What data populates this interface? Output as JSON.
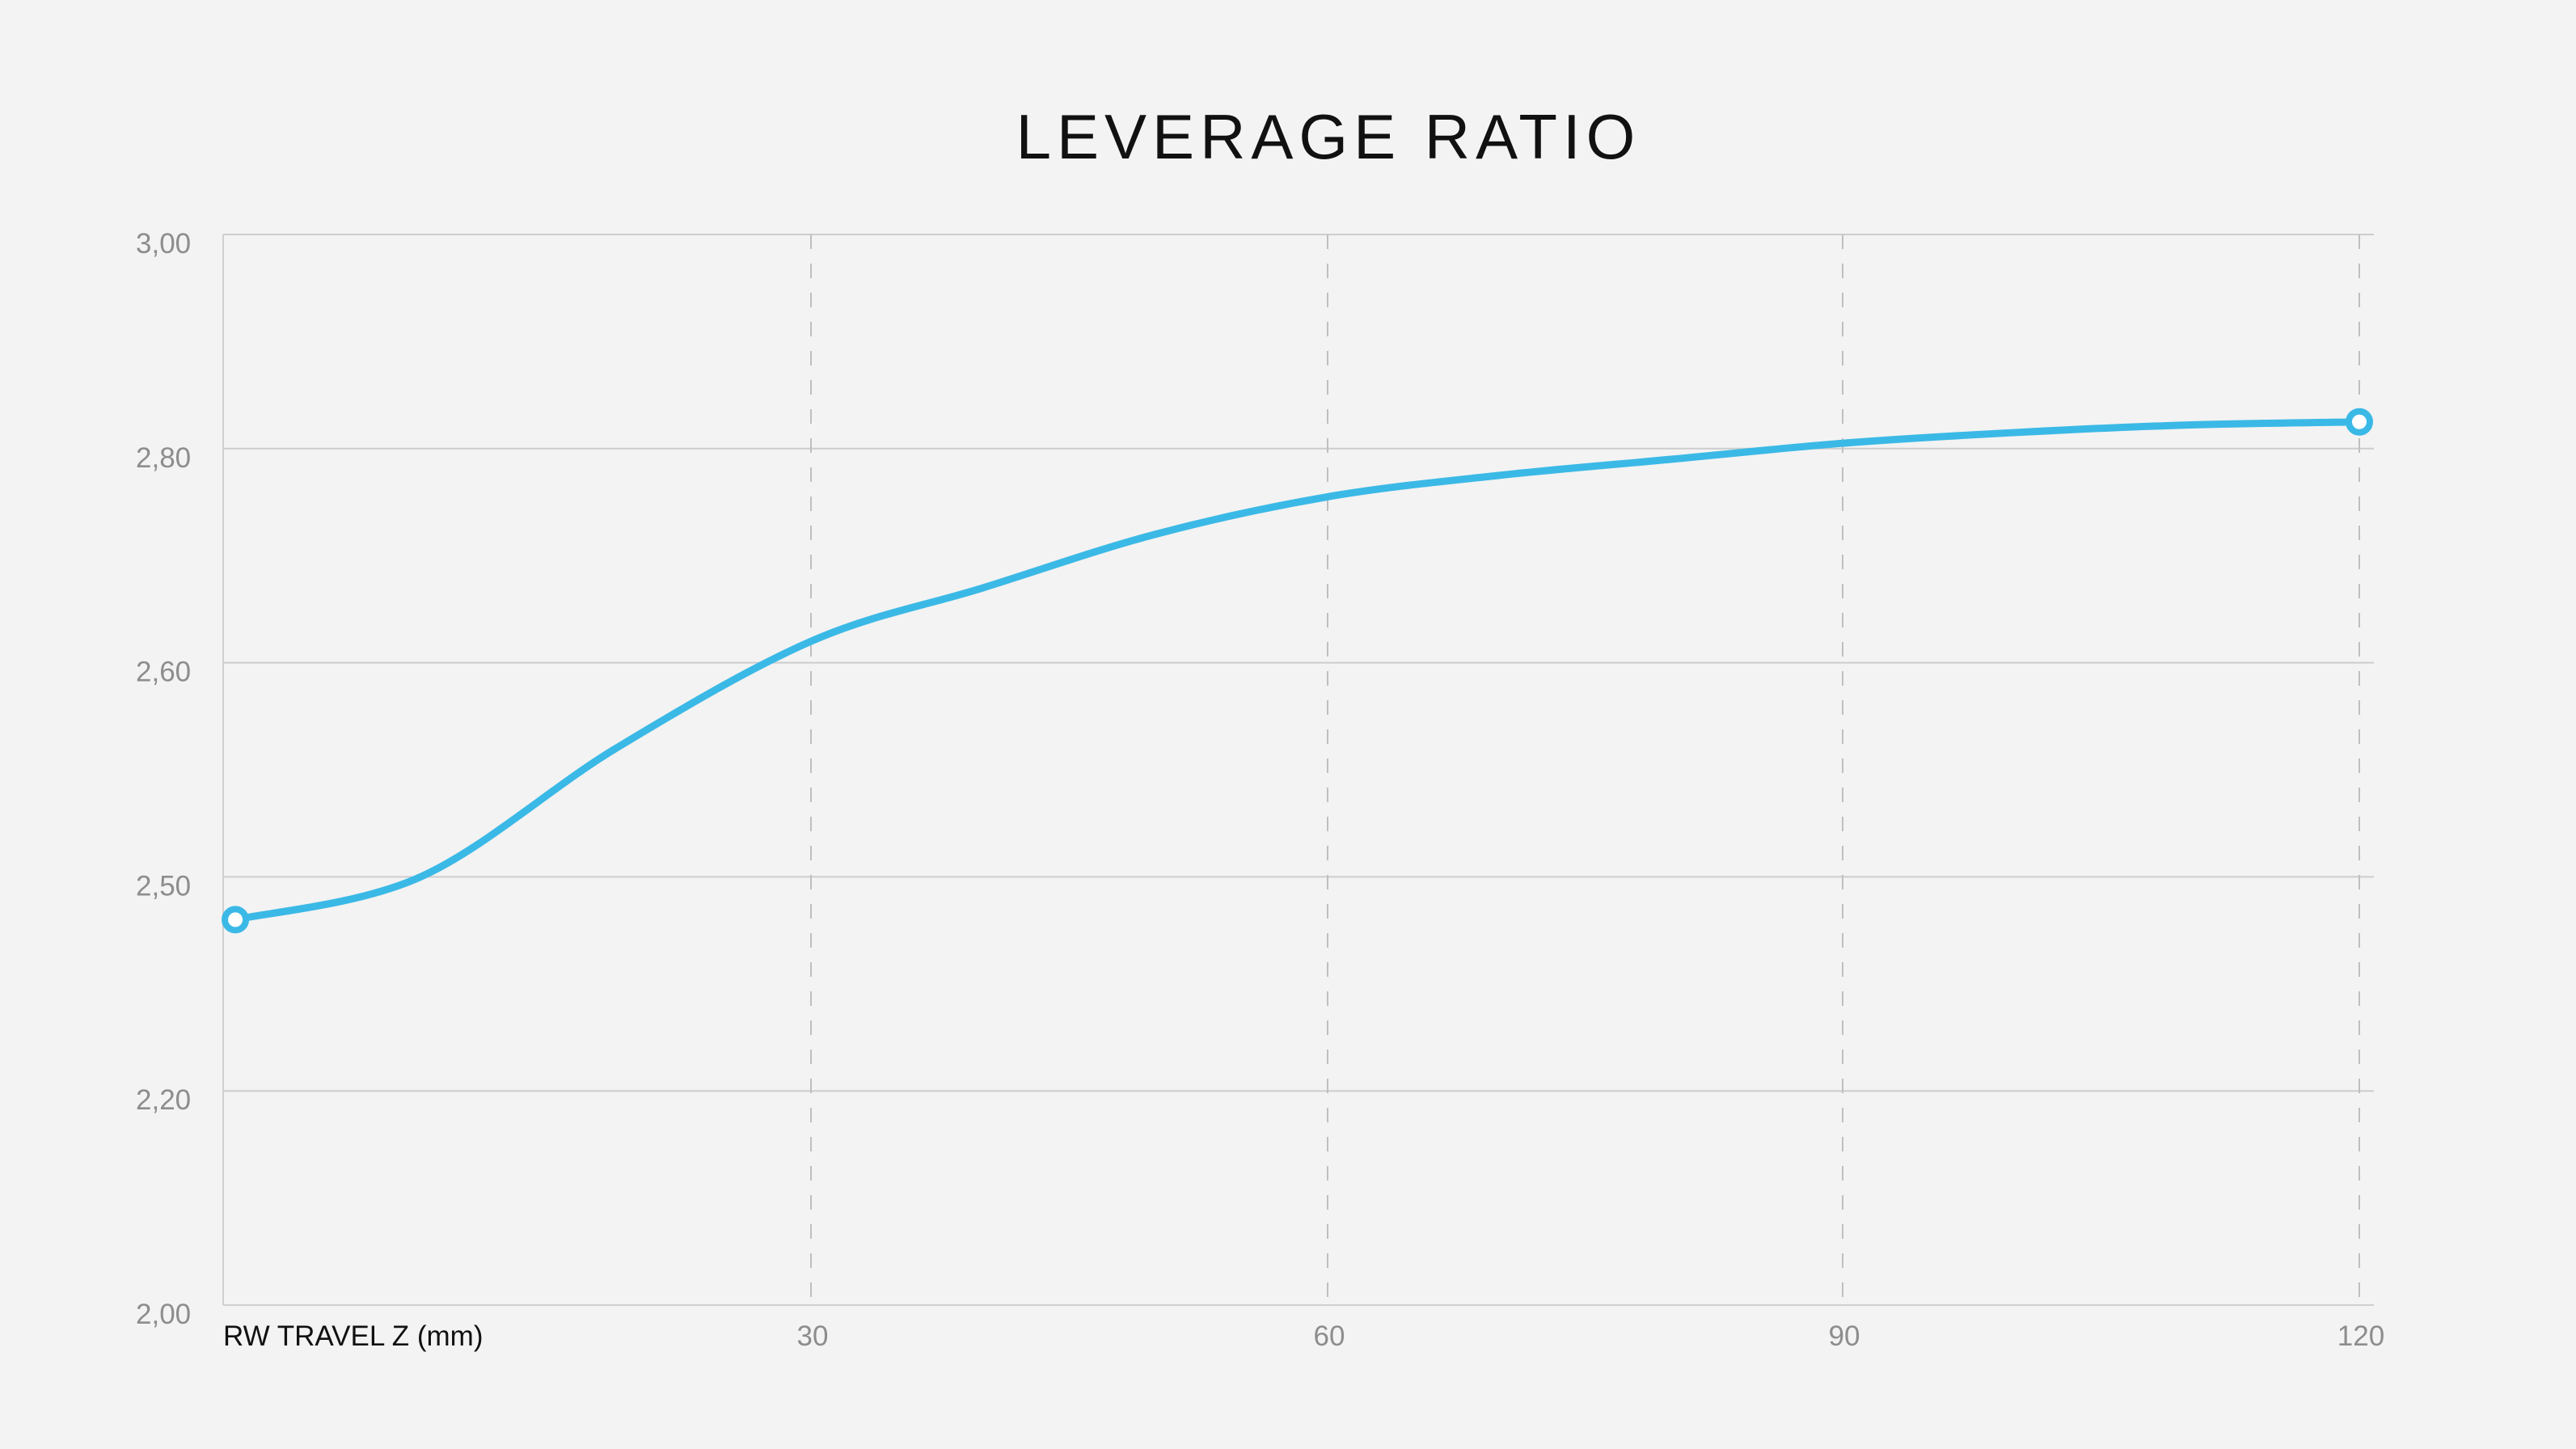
{
  "chart_data": {
    "type": "line",
    "title": "LEVERAGE RATIO",
    "xlabel": "RW TRAVEL Z (mm)",
    "ylabel": "",
    "x_ticks": [
      30,
      60,
      90,
      120
    ],
    "y_ticks": [
      "2,00",
      "2,20",
      "2,50",
      "2,60",
      "2,80",
      "3,00"
    ],
    "grid": {
      "horizontal": "solid",
      "vertical": "dashed"
    },
    "series": [
      {
        "color": "#3bb9e6",
        "points": [
          {
            "x": 0.5,
            "y": 2.44
          },
          {
            "x": 10,
            "y": 2.5
          },
          {
            "x": 20,
            "y": 2.56
          },
          {
            "x": 30,
            "y": 2.62
          },
          {
            "x": 40,
            "y": 2.67
          },
          {
            "x": 50,
            "y": 2.72
          },
          {
            "x": 60,
            "y": 2.755
          },
          {
            "x": 70,
            "y": 2.775
          },
          {
            "x": 80,
            "y": 2.79
          },
          {
            "x": 90,
            "y": 2.805
          },
          {
            "x": 100,
            "y": 2.815
          },
          {
            "x": 110,
            "y": 2.822
          },
          {
            "x": 120,
            "y": 2.825
          }
        ],
        "markers": [
          {
            "x": 0.5,
            "y": 2.44
          },
          {
            "x": 120,
            "y": 2.825
          }
        ]
      }
    ]
  }
}
